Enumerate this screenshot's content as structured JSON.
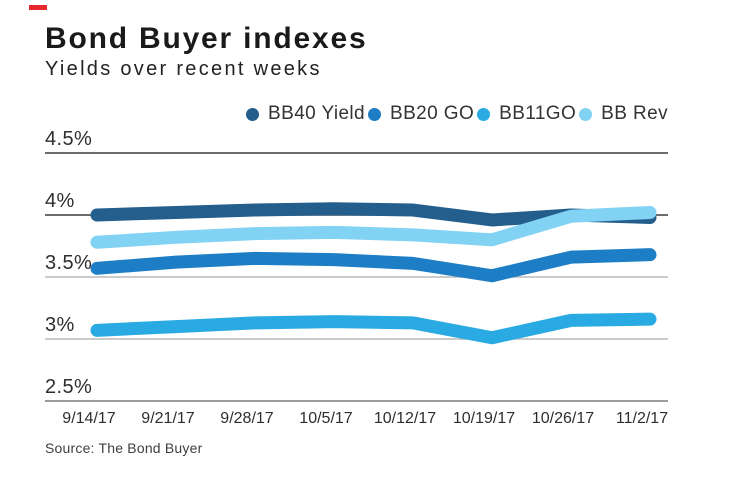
{
  "brand": {
    "accent_color": "#e8282f"
  },
  "header": {
    "title": "Bond Buyer indexes",
    "subtitle": "Yields over recent weeks"
  },
  "source_note": "Source: The Bond Buyer",
  "chart_data": {
    "type": "line",
    "title": "Bond Buyer indexes",
    "subtitle": "Yields over recent weeks",
    "categories": [
      "9/14/17",
      "9/21/17",
      "9/28/17",
      "10/5/17",
      "10/12/17",
      "10/19/17",
      "10/26/17",
      "11/2/17"
    ],
    "series": [
      {
        "name": "BB40 Yield",
        "color": "#235e8d",
        "values": [
          4.0,
          4.02,
          4.04,
          4.05,
          4.04,
          3.96,
          4.0,
          3.98
        ]
      },
      {
        "name": "BB20 GO",
        "color": "#1d7dc5",
        "values": [
          3.57,
          3.62,
          3.65,
          3.64,
          3.61,
          3.51,
          3.66,
          3.68
        ]
      },
      {
        "name": "BB11GO",
        "color": "#2aaae2",
        "values": [
          3.07,
          3.1,
          3.13,
          3.14,
          3.13,
          3.01,
          3.15,
          3.16
        ]
      },
      {
        "name": "BB Rev",
        "color": "#82d2f4",
        "values": [
          3.78,
          3.82,
          3.85,
          3.86,
          3.84,
          3.8,
          3.99,
          4.02
        ]
      }
    ],
    "xlabel": "",
    "ylabel": "",
    "ylim": [
      2.5,
      4.5
    ],
    "yticks": [
      {
        "label": "4.5%",
        "value": 4.5,
        "line_color": "#3b3b3b"
      },
      {
        "label": "4%",
        "value": 4.0,
        "line_color": "#3b3b3b"
      },
      {
        "label": "3.5%",
        "value": 3.5,
        "line_color": "#bababa"
      },
      {
        "label": "3%",
        "value": 3.0,
        "line_color": "#bababa"
      },
      {
        "label": "2.5%",
        "value": 2.5,
        "line_color": "#9c9c9c"
      }
    ],
    "grid": true,
    "legend_position": "top-right",
    "line_width": 13
  }
}
